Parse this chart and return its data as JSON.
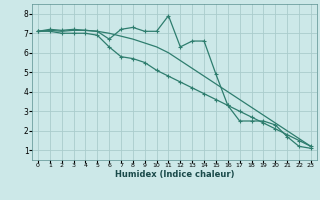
{
  "xlabel": "Humidex (Indice chaleur)",
  "bg_color": "#cce8e8",
  "grid_color": "#aacccc",
  "line_color": "#2e7d6e",
  "xlim": [
    -0.5,
    23.5
  ],
  "ylim": [
    0.5,
    8.5
  ],
  "xticks": [
    0,
    1,
    2,
    3,
    4,
    5,
    6,
    7,
    8,
    9,
    10,
    11,
    12,
    13,
    14,
    15,
    16,
    17,
    18,
    19,
    20,
    21,
    22,
    23
  ],
  "yticks": [
    1,
    2,
    3,
    4,
    5,
    6,
    7,
    8
  ],
  "line1_x": [
    0,
    1,
    2,
    3,
    4,
    5,
    6,
    7,
    8,
    9,
    10,
    11,
    12,
    13,
    14,
    15,
    16,
    17,
    18,
    19,
    20,
    21,
    22,
    23
  ],
  "line1_y": [
    7.1,
    7.2,
    7.15,
    7.2,
    7.15,
    7.1,
    6.7,
    7.2,
    7.3,
    7.1,
    7.1,
    7.9,
    6.3,
    6.6,
    6.6,
    4.9,
    3.3,
    2.5,
    2.5,
    2.5,
    2.3,
    1.7,
    1.2,
    1.1
  ],
  "line2_x": [
    0,
    1,
    2,
    3,
    4,
    5,
    6,
    7,
    8,
    9,
    10,
    11,
    12,
    13,
    14,
    15,
    16,
    17,
    18,
    19,
    20,
    21,
    22,
    23
  ],
  "line2_y": [
    7.1,
    7.1,
    7.0,
    7.0,
    7.0,
    6.9,
    6.3,
    5.8,
    5.7,
    5.5,
    5.1,
    4.8,
    4.5,
    4.2,
    3.9,
    3.6,
    3.3,
    3.0,
    2.7,
    2.4,
    2.1,
    1.8,
    1.5,
    1.2
  ],
  "line3_x": [
    0,
    1,
    2,
    3,
    4,
    5,
    6,
    7,
    8,
    9,
    10,
    11,
    12,
    13,
    14,
    15,
    16,
    17,
    18,
    19,
    20,
    21,
    22,
    23
  ],
  "line3_y": [
    7.1,
    7.15,
    7.1,
    7.15,
    7.15,
    7.1,
    7.0,
    6.85,
    6.7,
    6.5,
    6.3,
    6.0,
    5.6,
    5.2,
    4.8,
    4.4,
    4.0,
    3.6,
    3.2,
    2.8,
    2.4,
    2.0,
    1.6,
    1.2
  ]
}
